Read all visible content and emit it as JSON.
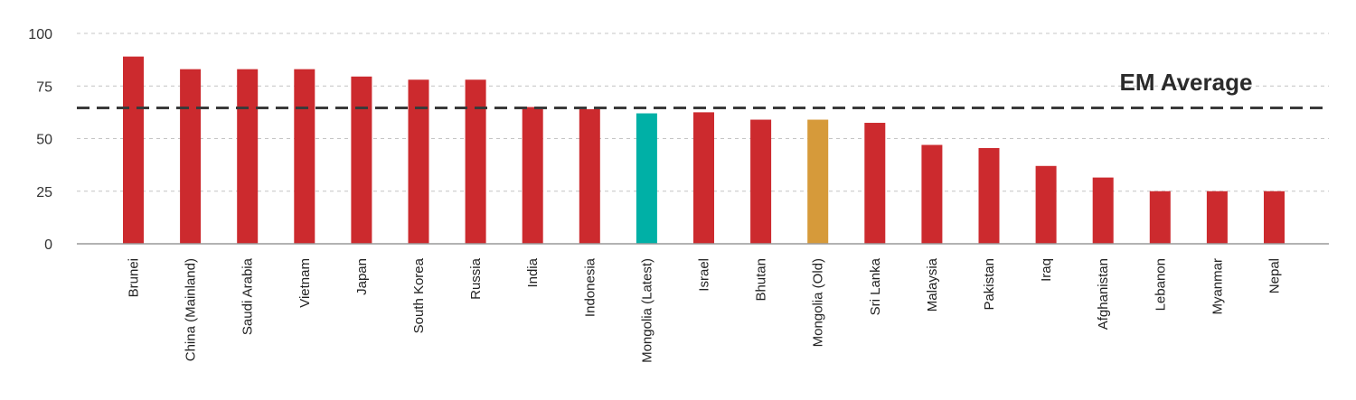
{
  "chart_data": {
    "type": "bar",
    "title": "",
    "xlabel": "",
    "ylabel": "",
    "ylim": [
      0,
      100
    ],
    "yticks": [
      0,
      25,
      50,
      75,
      100
    ],
    "grid": "horizontal dashed",
    "categories": [
      "Brunei",
      "China (Mainland)",
      "Saudi Arabia",
      "Vietnam",
      "Japan",
      "South Korea",
      "Russia",
      "India",
      "Indonesia",
      "Mongolia (Latest)",
      "Israel",
      "Bhutan",
      "Mongolia (Old)",
      "Sri Lanka",
      "Malaysia",
      "Pakistan",
      "Iraq",
      "Afghanistan",
      "Lebanon",
      "Myanmar",
      "Nepal"
    ],
    "values": [
      89,
      83,
      83,
      83,
      79.5,
      78,
      78,
      65,
      64,
      62,
      62.5,
      59,
      59,
      57.5,
      47,
      45.5,
      37,
      31.5,
      25,
      25,
      25
    ],
    "colors": [
      "#cc2a2e",
      "#cc2a2e",
      "#cc2a2e",
      "#cc2a2e",
      "#cc2a2e",
      "#cc2a2e",
      "#cc2a2e",
      "#cc2a2e",
      "#cc2a2e",
      "#00b0a6",
      "#cc2a2e",
      "#cc2a2e",
      "#d69a3a",
      "#cc2a2e",
      "#cc2a2e",
      "#cc2a2e",
      "#cc2a2e",
      "#cc2a2e",
      "#cc2a2e",
      "#cc2a2e",
      "#cc2a2e"
    ],
    "reference_line": {
      "label": "EM Average",
      "value": 65,
      "color": "#3a3a3a",
      "style": "dashed"
    }
  }
}
